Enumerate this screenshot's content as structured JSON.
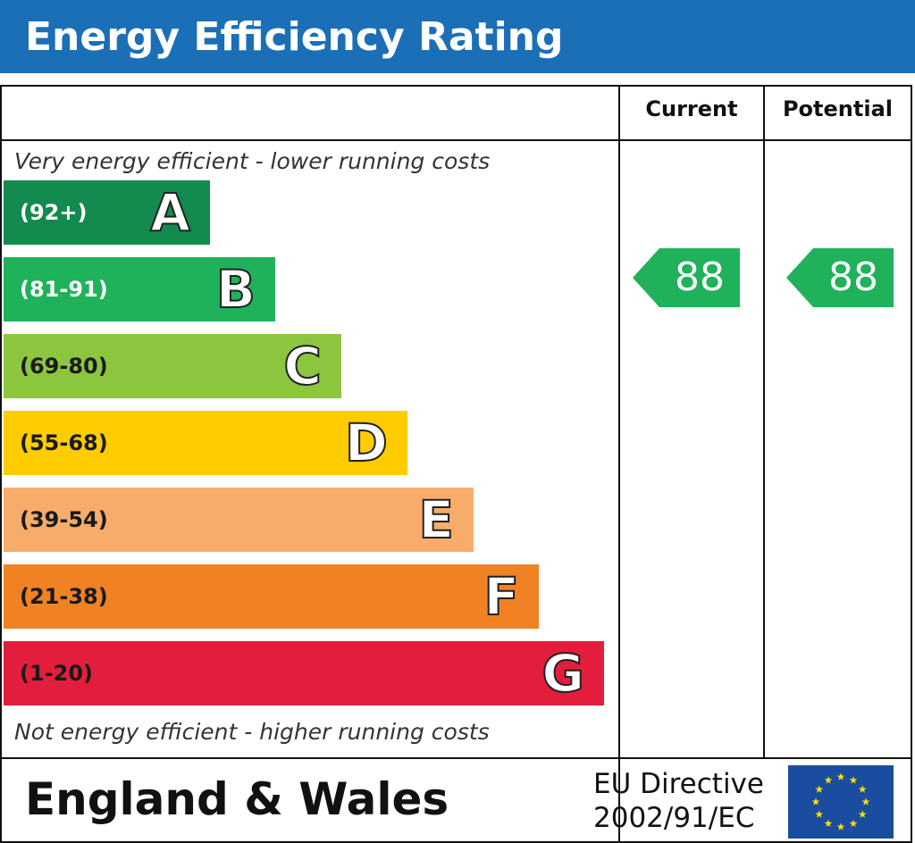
{
  "header": {
    "title": "Energy Efficiency Rating"
  },
  "columns": {
    "current_label": "Current",
    "potential_label": "Potential"
  },
  "notes": {
    "top": "Very energy efficient - lower running costs",
    "bottom": "Not energy efficient - higher running costs"
  },
  "chart_data": {
    "type": "bar",
    "title": "Energy Efficiency Rating",
    "categories": [
      "A",
      "B",
      "C",
      "D",
      "E",
      "F",
      "G"
    ],
    "bands": [
      {
        "letter": "A",
        "range": "(92+)",
        "color": "#138a4e",
        "text_color": "#ffffff",
        "min": 92,
        "max": 100
      },
      {
        "letter": "B",
        "range": "(81-91)",
        "color": "#1fb25a",
        "text_color": "#ffffff",
        "min": 81,
        "max": 91
      },
      {
        "letter": "C",
        "range": "(69-80)",
        "color": "#8cc63f",
        "text_color": "#1a1a1a",
        "min": 69,
        "max": 80
      },
      {
        "letter": "D",
        "range": "(55-68)",
        "color": "#ffcc00",
        "text_color": "#1a1a1a",
        "min": 55,
        "max": 68
      },
      {
        "letter": "E",
        "range": "(39-54)",
        "color": "#f7ac6b",
        "text_color": "#1a1a1a",
        "min": 39,
        "max": 54
      },
      {
        "letter": "F",
        "range": "(21-38)",
        "color": "#f08224",
        "text_color": "#1a1a1a",
        "min": 21,
        "max": 38
      },
      {
        "letter": "G",
        "range": "(1-20)",
        "color": "#e31d3c",
        "text_color": "#1a1a1a",
        "min": 1,
        "max": 20
      }
    ],
    "current": {
      "value": 88,
      "band": "B",
      "color": "#1fb25a"
    },
    "potential": {
      "value": 88,
      "band": "B",
      "color": "#1fb25a"
    }
  },
  "footer": {
    "region": "England & Wales",
    "directive_line1": "EU Directive",
    "directive_line2": "2002/91/EC",
    "flag_color": "#1a4da0",
    "star_color": "#ffdd00"
  }
}
